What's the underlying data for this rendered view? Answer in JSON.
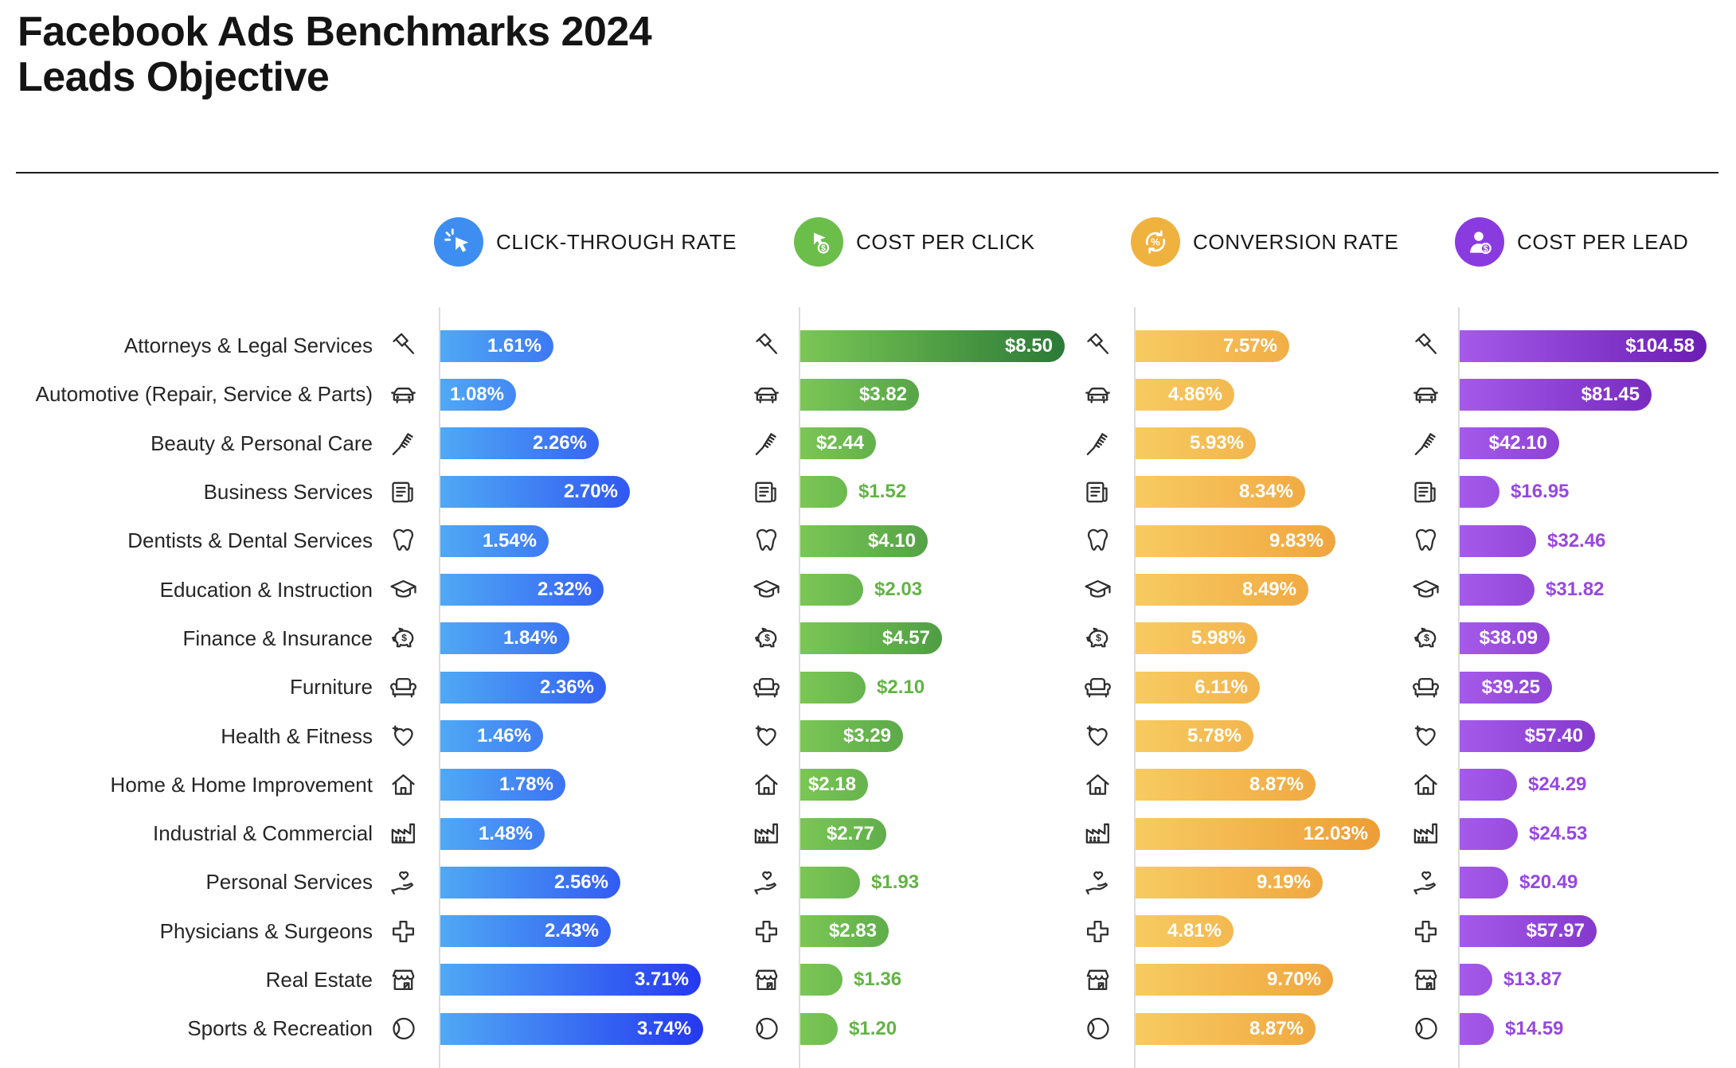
{
  "page": {
    "title_line1": "Facebook Ads Benchmarks 2024",
    "title_line2": "Leads Objective"
  },
  "metrics": [
    {
      "id": "ctr",
      "label": "CLICK-THROUGH RATE",
      "icon": "cursor-click-icon",
      "circle_color": "#3D8EF0",
      "bar_gradient_start": "#4FA9F5",
      "bar_gradient_end": "#2538F0",
      "outside_label_color": "#3D8EF0",
      "unit": "%"
    },
    {
      "id": "cpc",
      "label": "COST PER CLICK",
      "icon": "cursor-dollar-icon",
      "circle_color": "#6CBE4B",
      "bar_gradient_start": "#7AC755",
      "bar_gradient_end": "#2B7A36",
      "outside_label_color": "#61B443",
      "unit": "$"
    },
    {
      "id": "cvr",
      "label": "CONVERSION RATE",
      "icon": "percent-cycle-icon",
      "circle_color": "#F0B23E",
      "bar_gradient_start": "#F7CB61",
      "bar_gradient_end": "#EE9D36",
      "outside_label_color": "#F0A93C",
      "unit": "%"
    },
    {
      "id": "cpl",
      "label": "COST PER LEAD",
      "icon": "person-dollar-icon",
      "circle_color": "#8A3BE0",
      "bar_gradient_start": "#A55AEA",
      "bar_gradient_end": "#6C1DB4",
      "outside_label_color": "#9747E3",
      "unit": "$"
    }
  ],
  "categories": [
    {
      "label": "Attorneys & Legal Services",
      "icon": "gavel-icon"
    },
    {
      "label": "Automotive (Repair, Service & Parts)",
      "icon": "car-icon"
    },
    {
      "label": "Beauty & Personal Care",
      "icon": "comb-icon"
    },
    {
      "label": "Business Services",
      "icon": "newspaper-icon"
    },
    {
      "label": "Dentists & Dental Services",
      "icon": "tooth-icon"
    },
    {
      "label": "Education & Instruction",
      "icon": "graduation-cap-icon"
    },
    {
      "label": "Finance & Insurance",
      "icon": "piggy-bank-icon"
    },
    {
      "label": "Furniture",
      "icon": "armchair-icon"
    },
    {
      "label": "Health & Fitness",
      "icon": "heart-plus-icon"
    },
    {
      "label": "Home & Home Improvement",
      "icon": "house-icon"
    },
    {
      "label": "Industrial & Commercial",
      "icon": "factory-icon"
    },
    {
      "label": "Personal Services",
      "icon": "hand-heart-icon"
    },
    {
      "label": "Physicians & Surgeons",
      "icon": "medical-cross-icon"
    },
    {
      "label": "Real Estate",
      "icon": "storefront-icon"
    },
    {
      "label": "Sports & Recreation",
      "icon": "ball-icon"
    }
  ],
  "chart_data": {
    "type": "bar",
    "orientation": "horizontal",
    "title": "Facebook Ads Benchmarks 2024 — Leads Objective",
    "legend_position": "top",
    "grid": false,
    "scaling": "each series scaled independently to its own maximum",
    "categories": [
      "Attorneys & Legal Services",
      "Automotive (Repair, Service & Parts)",
      "Beauty & Personal Care",
      "Business Services",
      "Dentists & Dental Services",
      "Education & Instruction",
      "Finance & Insurance",
      "Furniture",
      "Health & Fitness",
      "Home & Home Improvement",
      "Industrial & Commercial",
      "Personal Services",
      "Physicians & Surgeons",
      "Real Estate",
      "Sports & Recreation"
    ],
    "series": [
      {
        "name": "Click-Through Rate",
        "unit": "%",
        "xlim": [
          0,
          3.74
        ],
        "values": [
          1.61,
          1.08,
          2.26,
          2.7,
          1.54,
          2.32,
          1.84,
          2.36,
          1.46,
          1.78,
          1.48,
          2.56,
          2.43,
          3.71,
          3.74
        ],
        "labels": [
          "1.61%",
          "1.08%",
          "2.26%",
          "2.70%",
          "1.54%",
          "2.32%",
          "1.84%",
          "2.36%",
          "1.46%",
          "1.78%",
          "1.48%",
          "2.56%",
          "2.43%",
          "3.71%",
          "3.74%"
        ],
        "label_inside": [
          true,
          true,
          true,
          true,
          true,
          true,
          true,
          true,
          true,
          true,
          true,
          true,
          true,
          true,
          true
        ]
      },
      {
        "name": "Cost Per Click",
        "unit": "USD",
        "xlim": [
          0,
          8.5
        ],
        "values": [
          8.5,
          3.82,
          2.44,
          1.52,
          4.1,
          2.03,
          4.57,
          2.1,
          3.29,
          2.18,
          2.77,
          1.93,
          2.83,
          1.36,
          1.2
        ],
        "labels": [
          "$8.50",
          "$3.82",
          "$2.44",
          "$1.52",
          "$4.10",
          "$2.03",
          "$4.57",
          "$2.10",
          "$3.29",
          "$2.18",
          "$2.77",
          "$1.93",
          "$2.83",
          "$1.36",
          "$1.20"
        ],
        "label_inside": [
          true,
          true,
          true,
          false,
          true,
          false,
          true,
          false,
          true,
          true,
          true,
          false,
          true,
          false,
          false
        ]
      },
      {
        "name": "Conversion Rate",
        "unit": "%",
        "xlim": [
          0,
          12.03
        ],
        "values": [
          7.57,
          4.86,
          5.93,
          8.34,
          9.83,
          8.49,
          5.98,
          6.11,
          5.78,
          8.87,
          12.03,
          9.19,
          4.81,
          9.7,
          8.87
        ],
        "labels": [
          "7.57%",
          "4.86%",
          "5.93%",
          "8.34%",
          "9.83%",
          "8.49%",
          "5.98%",
          "6.11%",
          "5.78%",
          "8.87%",
          "12.03%",
          "9.19%",
          "4.81%",
          "9.70%",
          "8.87%"
        ],
        "label_inside": [
          true,
          true,
          true,
          true,
          true,
          true,
          true,
          true,
          true,
          true,
          true,
          true,
          true,
          true,
          true
        ]
      },
      {
        "name": "Cost Per Lead",
        "unit": "USD",
        "xlim": [
          0,
          104.58
        ],
        "values": [
          104.58,
          81.45,
          42.1,
          16.95,
          32.46,
          31.82,
          38.09,
          39.25,
          57.4,
          24.29,
          24.53,
          20.49,
          57.97,
          13.87,
          14.59
        ],
        "labels": [
          "$104.58",
          "$81.45",
          "$42.10",
          "$16.95",
          "$32.46",
          "$31.82",
          "$38.09",
          "$39.25",
          "$57.40",
          "$24.29",
          "$24.53",
          "$20.49",
          "$57.97",
          "$13.87",
          "$14.59"
        ],
        "label_inside": [
          true,
          true,
          true,
          false,
          false,
          false,
          true,
          true,
          true,
          false,
          false,
          false,
          true,
          false,
          false
        ]
      }
    ]
  }
}
